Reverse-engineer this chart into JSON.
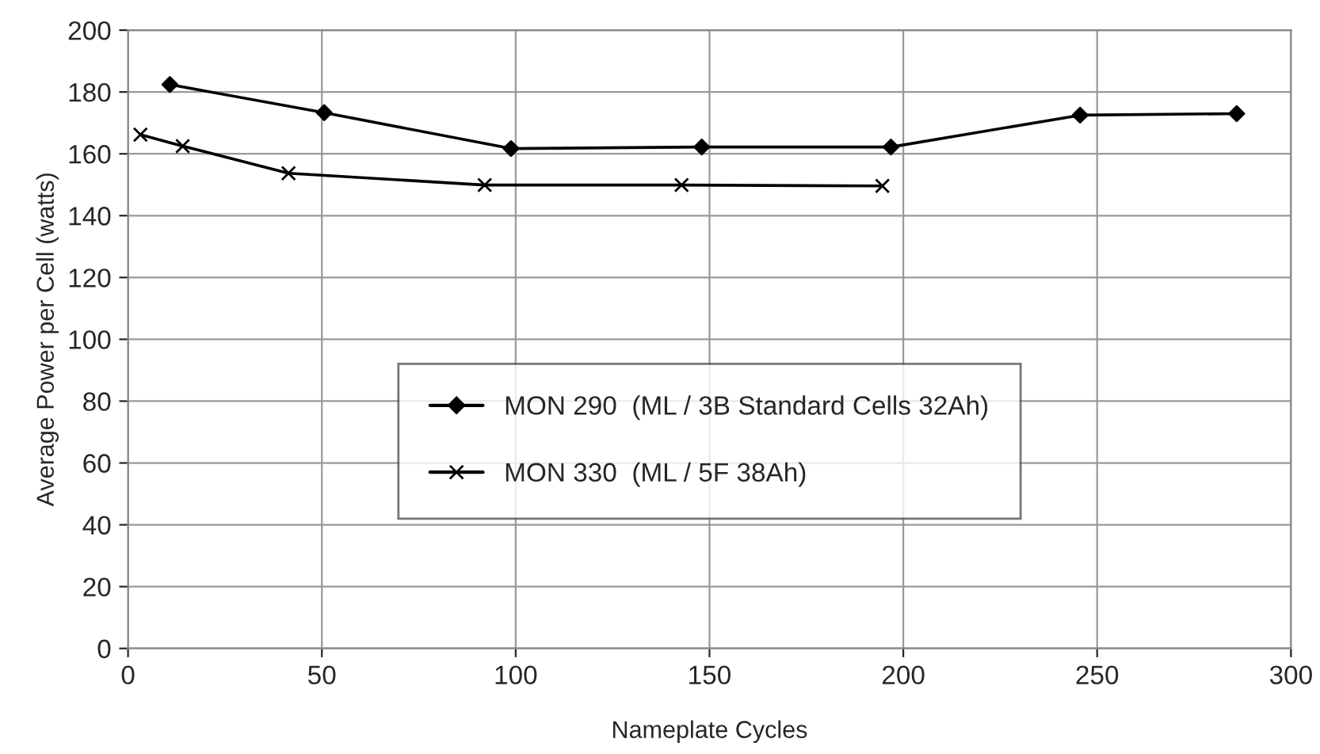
{
  "chart_data": {
    "type": "line",
    "xlabel": "Nameplate Cycles",
    "ylabel": "Average Power per Cell (watts)",
    "xlim": [
      0,
      300
    ],
    "xticks": [
      0,
      50,
      100,
      150,
      200,
      250,
      300
    ],
    "ylim": [
      0,
      200
    ],
    "yticks": [
      0,
      20,
      40,
      60,
      80,
      100,
      120,
      140,
      160,
      180,
      200
    ],
    "grid": true,
    "legend": "bottom",
    "series": [
      {
        "name": "MON 290  (ML / 3B Standard Cells 32Ah)",
        "color": "#000000",
        "marker": "diamond",
        "x": [
          10.8,
          50.6,
          98.8,
          148,
          196.8,
          245.6,
          286
        ],
        "values": [
          182.4,
          173.3,
          161.7,
          162.2,
          162.2,
          172.5,
          173.0
        ]
      },
      {
        "name": "MON 330  (ML / 5F 38Ah)",
        "color": "#000000",
        "marker": "cross",
        "x": [
          3.2,
          14.1,
          41.4,
          92,
          142.8,
          194.6
        ],
        "values": [
          166.2,
          162.5,
          153.7,
          149.9,
          149.9,
          149.6
        ]
      }
    ]
  }
}
